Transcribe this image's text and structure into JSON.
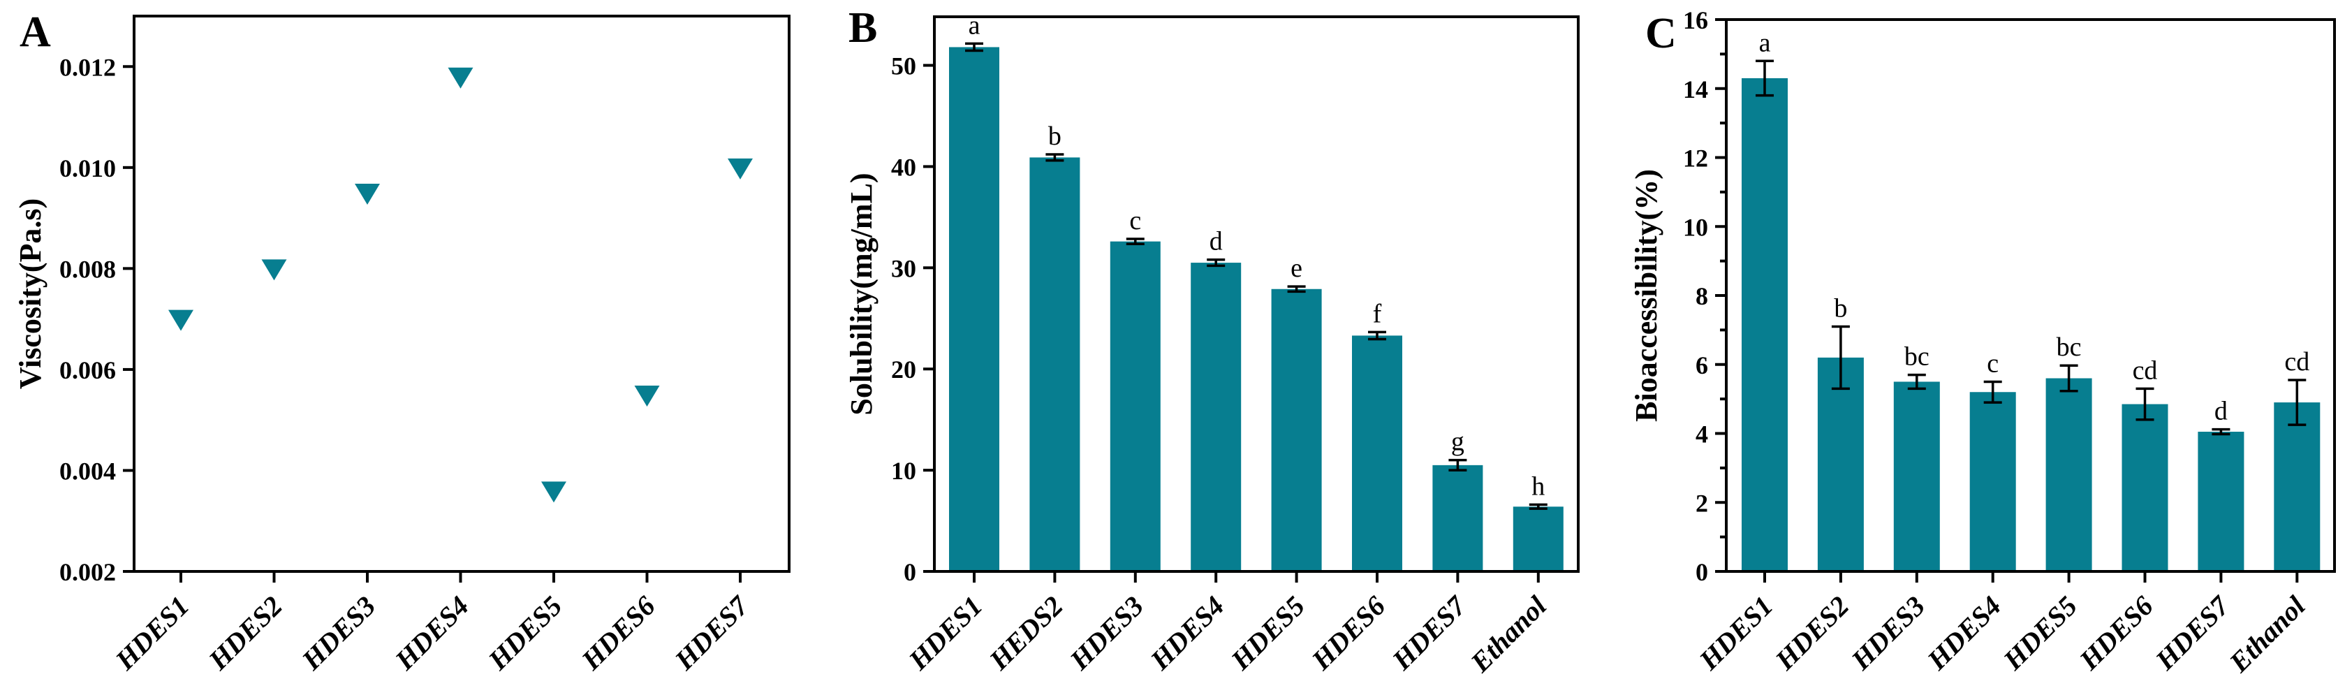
{
  "figure": {
    "background": "#ffffff",
    "axis_color": "#000000",
    "series_color": "#077e90",
    "error_bar_color": "#000000"
  },
  "chart_data": [
    {
      "panel_letter": "A",
      "type": "scatter",
      "marker": "triangle-down",
      "marker_color": "#077e90",
      "title": "",
      "xlabel": "",
      "ylabel": "Viscosity(Pa.s)",
      "categories": [
        "HDES1",
        "HDES2",
        "HDES3",
        "HDES4",
        "HDES5",
        "HDES6",
        "HDES7"
      ],
      "values": [
        0.007,
        0.008,
        0.0095,
        0.0118,
        0.0036,
        0.0055,
        0.01
      ],
      "yticks": [
        0.002,
        0.004,
        0.006,
        0.008,
        0.01,
        0.012
      ],
      "ytick_labels": [
        "0.002",
        "0.004",
        "0.006",
        "0.008",
        "0.010",
        "0.012"
      ],
      "yticks_minor": [],
      "ylim": [
        0.002,
        0.013
      ],
      "grid": false,
      "legend": "none"
    },
    {
      "panel_letter": "B",
      "type": "bar",
      "bar_color": "#077e90",
      "title": "",
      "xlabel": "",
      "ylabel": "Solubility(mg/mL)",
      "categories": [
        "HDES1",
        "HEDS2",
        "HDES3",
        "HDES4",
        "HDES5",
        "HDES6",
        "HDES7",
        "Ethanol"
      ],
      "values": [
        51.8,
        40.9,
        32.6,
        30.5,
        27.9,
        23.3,
        10.5,
        6.4
      ],
      "errors": [
        0.35,
        0.3,
        0.25,
        0.3,
        0.25,
        0.35,
        0.5,
        0.2
      ],
      "annotations": [
        "a",
        "b",
        "c",
        "d",
        "e",
        "f",
        "g",
        "h"
      ],
      "yticks": [
        0,
        10,
        20,
        30,
        40,
        50
      ],
      "ytick_labels": [
        "0",
        "10",
        "20",
        "30",
        "40",
        "50"
      ],
      "yticks_minor": [],
      "ylim": [
        0,
        54.8
      ],
      "grid": false,
      "legend": "none"
    },
    {
      "panel_letter": "C",
      "type": "bar",
      "bar_color": "#077e90",
      "title": "",
      "xlabel": "",
      "ylabel": "Bioaccessibility(%)",
      "categories": [
        "HDES1",
        "HDES2",
        "HDES3",
        "HDES4",
        "HDES5",
        "HDES6",
        "HDES7",
        "Ethanol"
      ],
      "values": [
        14.3,
        6.2,
        5.5,
        5.2,
        5.6,
        4.85,
        4.05,
        4.9
      ],
      "errors": [
        0.5,
        0.9,
        0.2,
        0.3,
        0.37,
        0.45,
        0.07,
        0.65
      ],
      "annotations": [
        "a",
        "b",
        "bc",
        "c",
        "bc",
        "cd",
        "d",
        "cd"
      ],
      "yticks": [
        0,
        2,
        4,
        6,
        8,
        10,
        12,
        14,
        16
      ],
      "ytick_labels": [
        "0",
        "2",
        "4",
        "6",
        "8",
        "10",
        "12",
        "14",
        "16"
      ],
      "yticks_minor": [
        1,
        3,
        5,
        7,
        9,
        11,
        13,
        15
      ],
      "ylim": [
        0,
        16
      ],
      "grid": false,
      "legend": "none"
    }
  ]
}
